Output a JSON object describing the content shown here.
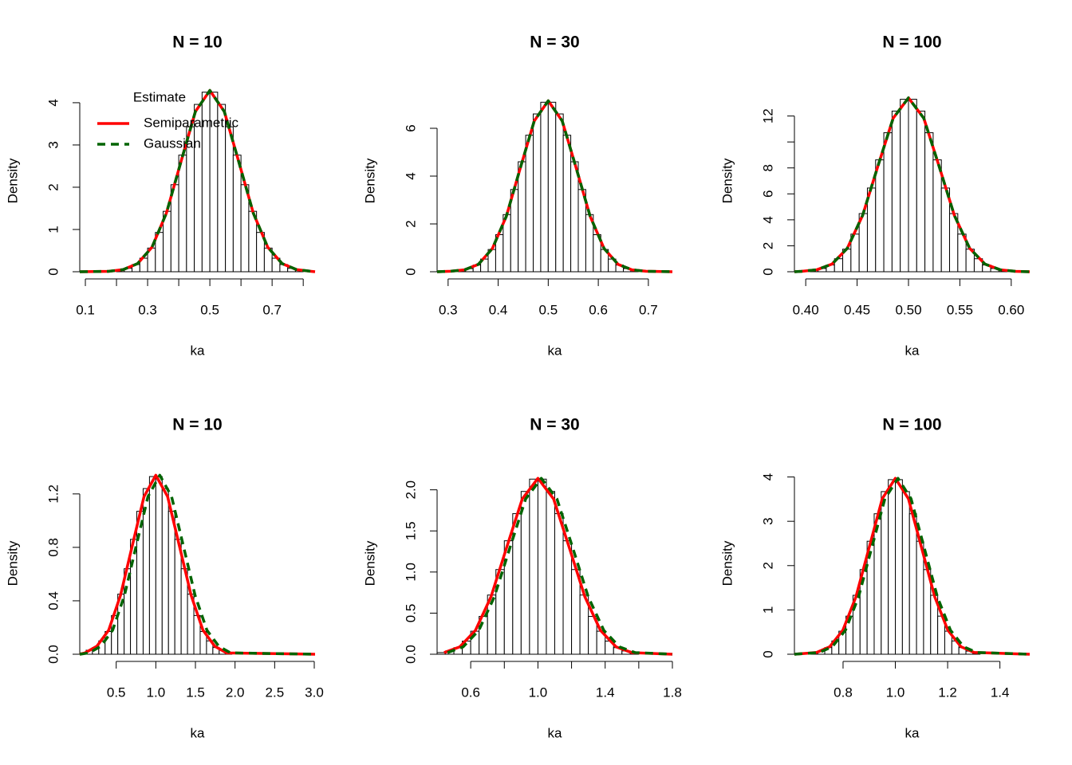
{
  "chart_data": [
    {
      "type": "histogram",
      "title": "N = 10",
      "xlabel": "ka",
      "ylabel": "Density",
      "bins": [
        0.2,
        0.225,
        0.25,
        0.275,
        0.3,
        0.325,
        0.35,
        0.375,
        0.4,
        0.425,
        0.45,
        0.475,
        0.5,
        0.525,
        0.55,
        0.575,
        0.6,
        0.625,
        0.65,
        0.675,
        0.7,
        0.725,
        0.75,
        0.775,
        0.8
      ],
      "values": [
        0.04,
        0.08,
        0.17,
        0.32,
        0.56,
        0.93,
        1.43,
        2.06,
        2.76,
        3.43,
        3.96,
        4.25,
        4.25,
        3.96,
        3.43,
        2.76,
        2.06,
        1.43,
        0.93,
        0.56,
        0.32,
        0.17,
        0.08,
        0.04
      ],
      "xlim": [
        0.082,
        0.838
      ],
      "ylim": [
        0,
        4.3
      ],
      "xticks": [
        0.1,
        0.3,
        0.5,
        0.7
      ],
      "xminorticks": [
        0.2,
        0.4,
        0.6,
        0.8
      ],
      "yticks": [
        0,
        1,
        2,
        3,
        4
      ],
      "legend": {
        "title": "Estimate",
        "position": "top-left"
      },
      "series": [
        {
          "name": "Semiparametric",
          "color": "#ff0000",
          "dash": false,
          "x": [
            0.082,
            0.1745,
            0.221,
            0.2675,
            0.314,
            0.3605,
            0.407,
            0.4535,
            0.5,
            0.5465,
            0.593,
            0.6395,
            0.686,
            0.7325,
            0.779,
            0.8255,
            0.838
          ],
          "values": [
            0,
            0.01,
            0.05,
            0.19,
            0.58,
            1.39,
            2.6,
            3.79,
            4.29,
            3.79,
            2.6,
            1.39,
            0.58,
            0.19,
            0.05,
            0.01,
            0
          ]
        },
        {
          "name": "Gaussian",
          "color": "#006400",
          "dash": true,
          "x": [
            0.082,
            0.1745,
            0.221,
            0.2675,
            0.314,
            0.3605,
            0.407,
            0.4535,
            0.5,
            0.5465,
            0.593,
            0.6395,
            0.686,
            0.7325,
            0.779,
            0.8255,
            0.838
          ],
          "values": [
            0,
            0.01,
            0.05,
            0.19,
            0.58,
            1.39,
            2.6,
            3.79,
            4.29,
            3.79,
            2.6,
            1.39,
            0.58,
            0.19,
            0.05,
            0.01,
            0
          ]
        }
      ]
    },
    {
      "type": "histogram",
      "title": "N = 30",
      "xlabel": "ka",
      "ylabel": "Density",
      "bins": [
        0.32,
        0.335,
        0.35,
        0.365,
        0.38,
        0.395,
        0.41,
        0.425,
        0.44,
        0.455,
        0.47,
        0.485,
        0.5,
        0.515,
        0.53,
        0.545,
        0.56,
        0.575,
        0.59,
        0.605,
        0.62,
        0.635,
        0.65,
        0.665,
        0.68
      ],
      "values": [
        0.06,
        0.13,
        0.28,
        0.53,
        0.93,
        1.55,
        2.39,
        3.44,
        4.6,
        5.71,
        6.6,
        7.09,
        7.09,
        6.6,
        5.71,
        4.6,
        3.44,
        2.39,
        1.55,
        0.93,
        0.53,
        0.28,
        0.13,
        0.06
      ],
      "xlim": [
        0.278,
        0.748
      ],
      "ylim": [
        0,
        7.6
      ],
      "xticks": [
        0.3,
        0.4,
        0.5,
        0.6,
        0.7
      ],
      "yticks": [
        0,
        2,
        4,
        6
      ],
      "series": [
        {
          "color": "#ff0000",
          "dash": false,
          "x": [
            0.278,
            0.3047,
            0.3326,
            0.3605,
            0.3884,
            0.4163,
            0.4442,
            0.4721,
            0.5,
            0.5279,
            0.5558,
            0.5837,
            0.6116,
            0.6395,
            0.6674,
            0.6953,
            0.748
          ],
          "values": [
            0,
            0.02,
            0.08,
            0.31,
            0.97,
            2.32,
            4.34,
            6.31,
            7.15,
            6.31,
            4.34,
            2.32,
            0.97,
            0.31,
            0.08,
            0.02,
            0
          ]
        },
        {
          "color": "#006400",
          "dash": true,
          "x": [
            0.278,
            0.3047,
            0.3326,
            0.3605,
            0.3884,
            0.4163,
            0.4442,
            0.4721,
            0.5,
            0.5279,
            0.5558,
            0.5837,
            0.6116,
            0.6395,
            0.6674,
            0.6953,
            0.748
          ],
          "values": [
            0,
            0.02,
            0.08,
            0.31,
            0.97,
            2.32,
            4.34,
            6.31,
            7.15,
            6.31,
            4.34,
            2.32,
            0.97,
            0.31,
            0.08,
            0.02,
            0
          ]
        }
      ]
    },
    {
      "type": "histogram",
      "title": "N = 100",
      "xlabel": "ka",
      "ylabel": "Density",
      "bins": [
        0.404,
        0.412,
        0.42,
        0.428,
        0.436,
        0.444,
        0.452,
        0.46,
        0.468,
        0.476,
        0.484,
        0.492,
        0.5,
        0.508,
        0.516,
        0.524,
        0.532,
        0.54,
        0.548,
        0.556,
        0.564,
        0.572,
        0.58,
        0.588,
        0.596
      ],
      "values": [
        0.11,
        0.25,
        0.52,
        1.0,
        1.74,
        2.9,
        4.48,
        6.45,
        8.62,
        10.71,
        12.38,
        13.29,
        13.29,
        12.38,
        10.71,
        8.62,
        6.45,
        4.48,
        2.9,
        1.74,
        1.0,
        0.52,
        0.25,
        0.11
      ],
      "xlim": [
        0.389,
        0.618
      ],
      "ylim": [
        0,
        14.0
      ],
      "xticks": [
        {
          "value": 0.4,
          "label": "0.40"
        },
        0.45,
        {
          "value": 0.5,
          "label": "0.50"
        },
        0.55,
        {
          "value": 0.6,
          "label": "0.60"
        }
      ],
      "yticks": [
        0,
        2,
        4,
        6,
        8,
        12
      ],
      "yminorticks": [
        10
      ],
      "series": [
        {
          "color": "#ff0000",
          "dash": false,
          "x": [
            0.389,
            0.3958,
            0.4107,
            0.4256,
            0.4405,
            0.4554,
            0.4702,
            0.4851,
            0.5,
            0.5149,
            0.5298,
            0.5446,
            0.5595,
            0.5744,
            0.5893,
            0.6042,
            0.618
          ],
          "values": [
            0,
            0.03,
            0.15,
            0.59,
            1.81,
            4.35,
            8.13,
            11.83,
            13.4,
            11.83,
            8.13,
            4.35,
            1.81,
            0.59,
            0.15,
            0.03,
            0
          ]
        },
        {
          "color": "#006400",
          "dash": true,
          "x": [
            0.389,
            0.3958,
            0.4107,
            0.4256,
            0.4405,
            0.4554,
            0.4702,
            0.4851,
            0.5,
            0.5149,
            0.5298,
            0.5446,
            0.5595,
            0.5744,
            0.5893,
            0.6042,
            0.618
          ],
          "values": [
            0,
            0.03,
            0.15,
            0.59,
            1.81,
            4.35,
            8.13,
            11.83,
            13.4,
            11.83,
            8.13,
            4.35,
            1.81,
            0.59,
            0.15,
            0.03,
            0
          ]
        }
      ]
    },
    {
      "type": "histogram",
      "title": "N = 10",
      "xlabel": "ka",
      "ylabel": "Density",
      "bins": [
        0.04,
        0.12,
        0.2,
        0.28,
        0.36,
        0.44,
        0.52,
        0.6,
        0.68,
        0.76,
        0.84,
        0.92,
        1.0,
        1.08,
        1.16,
        1.24,
        1.32,
        1.4,
        1.48,
        1.56,
        1.64,
        1.72,
        1.8,
        1.88,
        1.96
      ],
      "values": [
        0.01,
        0.03,
        0.05,
        0.1,
        0.17,
        0.29,
        0.45,
        0.64,
        0.86,
        1.07,
        1.24,
        1.33,
        1.33,
        1.24,
        1.07,
        0.86,
        0.64,
        0.45,
        0.29,
        0.17,
        0.1,
        0.05,
        0.03,
        0.01
      ],
      "xlim": [
        0.04,
        3.01
      ],
      "ylim": [
        0,
        1.36
      ],
      "xticks": [
        0.5,
        {
          "value": 1,
          "label": "1.0"
        },
        1.5,
        {
          "value": 2,
          "label": "2.0"
        },
        2.5,
        {
          "value": 3,
          "label": "3.0"
        }
      ],
      "yticks": [
        {
          "value": 0,
          "label": "0.0"
        },
        0.4,
        0.8,
        1.2
      ],
      "series": [
        {
          "color": "#ff0000",
          "dash": false,
          "x": [
            0.04,
            0.107,
            0.256,
            0.405,
            0.554,
            0.702,
            0.851,
            1.0,
            1.149,
            1.298,
            1.446,
            1.595,
            1.744,
            1.893,
            3.01
          ],
          "values": [
            0,
            0.01,
            0.06,
            0.18,
            0.44,
            0.81,
            1.18,
            1.34,
            1.18,
            0.81,
            0.44,
            0.18,
            0.06,
            0.01,
            0
          ]
        },
        {
          "color": "#006400",
          "dash": true,
          "x": [
            0.04,
            0.157,
            0.306,
            0.455,
            0.604,
            0.752,
            0.901,
            1.05,
            1.199,
            1.348,
            1.496,
            1.645,
            1.794,
            1.943,
            3.01
          ],
          "values": [
            0,
            0.01,
            0.06,
            0.18,
            0.44,
            0.81,
            1.18,
            1.34,
            1.18,
            0.81,
            0.44,
            0.18,
            0.06,
            0.01,
            0
          ]
        }
      ]
    },
    {
      "type": "histogram",
      "title": "N = 30",
      "xlabel": "ka",
      "ylabel": "Density",
      "bins": [
        0.4,
        0.45,
        0.5,
        0.55,
        0.6,
        0.65,
        0.7,
        0.75,
        0.8,
        0.85,
        0.9,
        0.95,
        1.0,
        1.05,
        1.1,
        1.15,
        1.2,
        1.25,
        1.3,
        1.35,
        1.4,
        1.45,
        1.5,
        1.55,
        1.6
      ],
      "values": [
        0.02,
        0.04,
        0.08,
        0.16,
        0.28,
        0.46,
        0.72,
        1.03,
        1.38,
        1.71,
        1.98,
        2.13,
        2.13,
        1.98,
        1.71,
        1.38,
        1.03,
        0.72,
        0.46,
        0.28,
        0.16,
        0.08,
        0.04,
        0.02
      ],
      "xlim": [
        0.4,
        1.8
      ],
      "ylim": [
        0,
        2.21
      ],
      "xticks": [
        0.6,
        {
          "value": 1,
          "label": "1.0"
        },
        1.4,
        1.8
      ],
      "xminorticks": [
        0.8,
        1.2,
        1.6
      ],
      "yticks": [
        {
          "value": 0,
          "label": "0.0"
        },
        0.5,
        {
          "value": 1,
          "label": "1.0"
        },
        1.5,
        {
          "value": 2,
          "label": "2.0"
        }
      ],
      "series": [
        {
          "color": "#ff0000",
          "dash": false,
          "x": [
            0.442,
            0.535,
            0.628,
            0.721,
            0.814,
            0.907,
            1.0,
            1.093,
            1.186,
            1.279,
            1.372,
            1.465,
            1.558,
            1.8
          ],
          "values": [
            0.02,
            0.09,
            0.29,
            0.7,
            1.3,
            1.89,
            2.14,
            1.89,
            1.3,
            0.7,
            0.29,
            0.09,
            0.02,
            0
          ]
        },
        {
          "color": "#006400",
          "dash": true,
          "x": [
            0.462,
            0.555,
            0.648,
            0.741,
            0.834,
            0.927,
            1.02,
            1.113,
            1.206,
            1.299,
            1.392,
            1.485,
            1.578,
            1.8
          ],
          "values": [
            0.02,
            0.09,
            0.29,
            0.7,
            1.3,
            1.89,
            2.14,
            1.89,
            1.3,
            0.7,
            0.29,
            0.09,
            0.02,
            0
          ]
        }
      ]
    },
    {
      "type": "histogram",
      "title": "N = 100",
      "xlabel": "ka",
      "ylabel": "Density",
      "bins": [
        0.676,
        0.703,
        0.73,
        0.757,
        0.784,
        0.811,
        0.838,
        0.865,
        0.892,
        0.919,
        0.946,
        0.973,
        1.0,
        1.027,
        1.054,
        1.081,
        1.108,
        1.135,
        1.162,
        1.189,
        1.216,
        1.243,
        1.27,
        1.297,
        1.324
      ],
      "values": [
        0.03,
        0.07,
        0.15,
        0.3,
        0.52,
        0.86,
        1.33,
        1.91,
        2.55,
        3.17,
        3.67,
        3.94,
        3.94,
        3.67,
        3.17,
        2.55,
        1.91,
        1.33,
        0.86,
        0.52,
        0.3,
        0.15,
        0.07,
        0.03
      ],
      "xlim": [
        0.614,
        1.514
      ],
      "ylim": [
        0,
        4.1
      ],
      "xticks": [
        0.8,
        {
          "value": 1,
          "label": "1.0"
        },
        1.2,
        1.4
      ],
      "yticks": [
        0,
        1,
        2,
        3,
        4
      ],
      "series": [
        {
          "color": "#ff0000",
          "dash": false,
          "x": [
            0.614,
            0.699,
            0.749,
            0.799,
            0.849,
            0.9,
            0.95,
            1.0,
            1.05,
            1.1,
            1.151,
            1.201,
            1.251,
            1.301,
            1.514
          ],
          "values": [
            0,
            0.04,
            0.17,
            0.54,
            1.29,
            2.41,
            3.51,
            3.97,
            3.51,
            2.41,
            1.29,
            0.54,
            0.17,
            0.04,
            0
          ]
        },
        {
          "color": "#006400",
          "dash": true,
          "x": [
            0.614,
            0.709,
            0.759,
            0.809,
            0.859,
            0.91,
            0.96,
            1.01,
            1.06,
            1.11,
            1.161,
            1.211,
            1.261,
            1.311,
            1.514
          ],
          "values": [
            0,
            0.04,
            0.17,
            0.54,
            1.29,
            2.41,
            3.51,
            3.97,
            3.51,
            2.41,
            1.29,
            0.54,
            0.17,
            0.04,
            0
          ]
        }
      ]
    }
  ]
}
